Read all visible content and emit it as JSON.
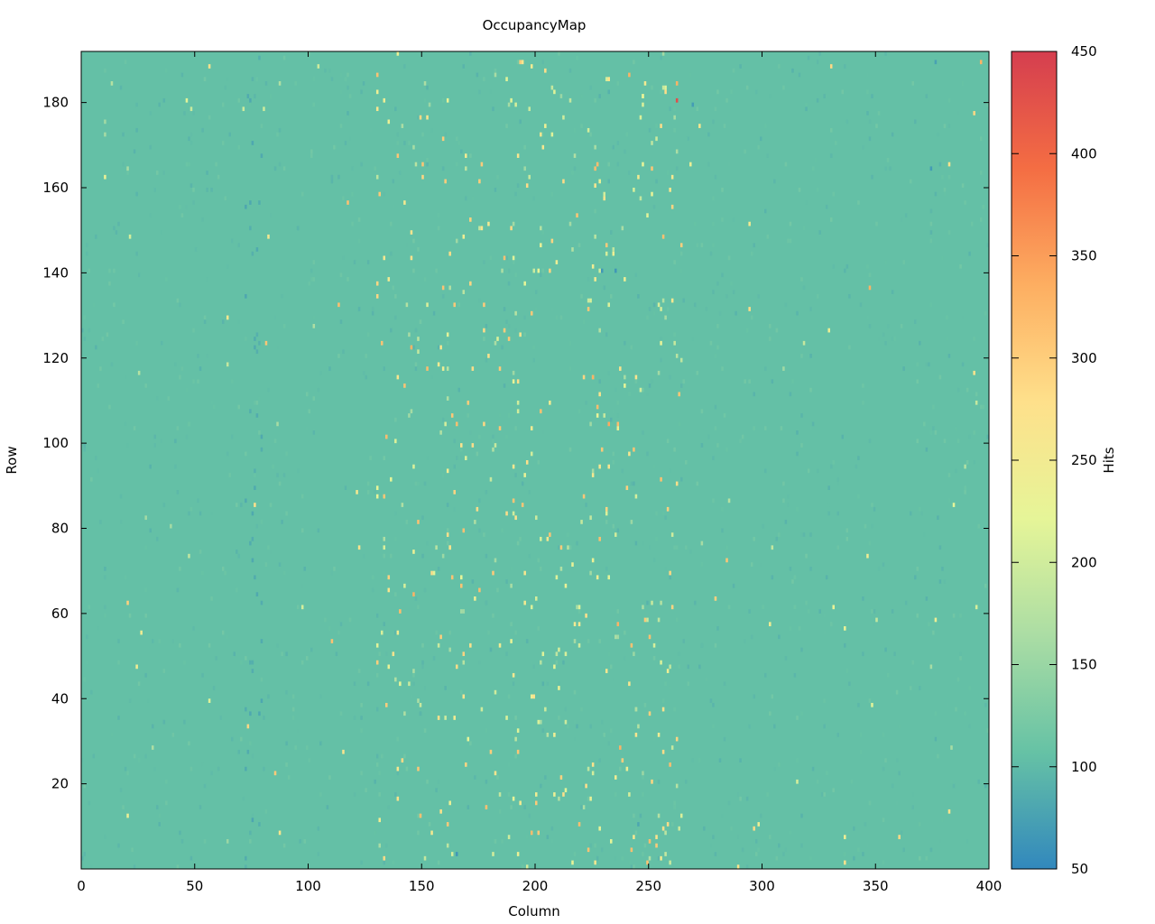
{
  "chart_data": {
    "type": "heatmap",
    "title": "OccupancyMap",
    "xlabel": "Column",
    "ylabel": "Row",
    "colorbar_label": "Hits",
    "xlim": [
      0,
      400
    ],
    "ylim": [
      0,
      192
    ],
    "clim": [
      50,
      450
    ],
    "x_ticks": [
      0,
      50,
      100,
      150,
      200,
      250,
      300,
      350,
      400
    ],
    "y_ticks": [
      20,
      40,
      60,
      80,
      100,
      120,
      140,
      160,
      180
    ],
    "colorbar_ticks": [
      50,
      100,
      150,
      200,
      250,
      300,
      350,
      400,
      450
    ],
    "background_value": 105,
    "colormap": [
      "#3288bd",
      "#66c2a5",
      "#abdda4",
      "#e6f598",
      "#fee08b",
      "#fdae61",
      "#f46d43",
      "#d53e4f"
    ],
    "band_x_range": [
      130,
      265
    ],
    "hot_pixels": [
      {
        "x": 262,
        "y": 180,
        "value": 430
      },
      {
        "x": 232,
        "y": 182,
        "value": 90
      },
      {
        "x": 269,
        "y": 179,
        "value": 70
      },
      {
        "x": 262,
        "y": 184,
        "value": 330
      },
      {
        "x": 241,
        "y": 186,
        "value": 330
      },
      {
        "x": 376,
        "y": 189,
        "value": 75
      },
      {
        "x": 396,
        "y": 189,
        "value": 330
      },
      {
        "x": 160,
        "y": 161,
        "value": 300
      },
      {
        "x": 175,
        "y": 161,
        "value": 300
      },
      {
        "x": 382,
        "y": 165,
        "value": 270
      },
      {
        "x": 374,
        "y": 164,
        "value": 70
      },
      {
        "x": 229,
        "y": 140,
        "value": 65
      },
      {
        "x": 235,
        "y": 140,
        "value": 65
      },
      {
        "x": 347,
        "y": 136,
        "value": 330
      },
      {
        "x": 145,
        "y": 122,
        "value": 330
      },
      {
        "x": 232,
        "y": 104,
        "value": 340
      },
      {
        "x": 225,
        "y": 115,
        "value": 330
      },
      {
        "x": 170,
        "y": 109,
        "value": 300
      },
      {
        "x": 262,
        "y": 90,
        "value": 280
      },
      {
        "x": 190,
        "y": 86,
        "value": 310
      },
      {
        "x": 146,
        "y": 64,
        "value": 330
      },
      {
        "x": 140,
        "y": 60,
        "value": 320
      },
      {
        "x": 236,
        "y": 57,
        "value": 330
      },
      {
        "x": 134,
        "y": 38,
        "value": 300
      },
      {
        "x": 237,
        "y": 28,
        "value": 330
      },
      {
        "x": 238,
        "y": 25,
        "value": 300
      },
      {
        "x": 262,
        "y": 30,
        "value": 290
      },
      {
        "x": 165,
        "y": 3,
        "value": 65
      },
      {
        "x": 245,
        "y": 10,
        "value": 80
      },
      {
        "x": 212,
        "y": 17,
        "value": 280
      },
      {
        "x": 382,
        "y": 13,
        "value": 270
      },
      {
        "x": 75,
        "y": 11,
        "value": 80
      },
      {
        "x": 74,
        "y": 76,
        "value": 85
      },
      {
        "x": 76,
        "y": 124,
        "value": 85
      },
      {
        "x": 78,
        "y": 156,
        "value": 85
      }
    ]
  }
}
